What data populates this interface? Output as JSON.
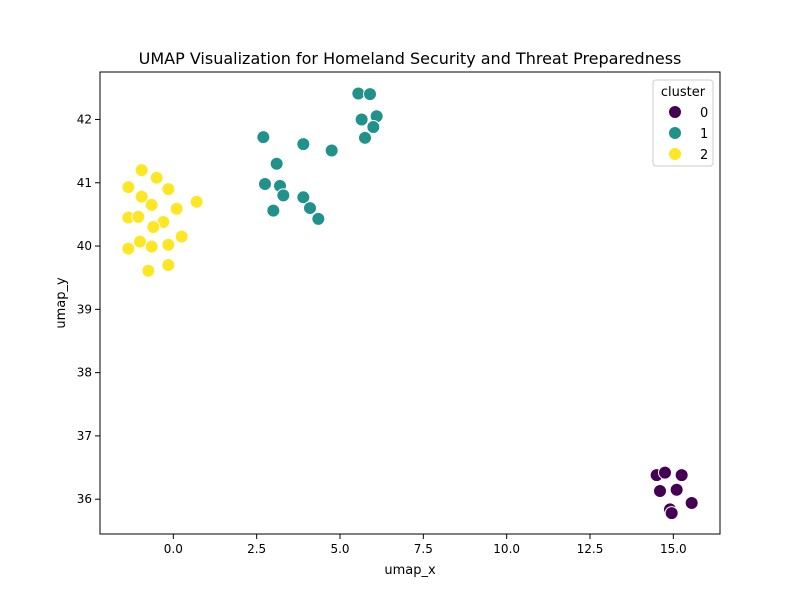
{
  "chart_data": {
    "type": "scatter",
    "title": "UMAP Visualization for Homeland Security and Threat Preparedness",
    "xlabel": "umap_x",
    "ylabel": "umap_y",
    "xlim": [
      -2.2,
      16.4
    ],
    "ylim": [
      35.45,
      42.75
    ],
    "x_ticks": [
      0.0,
      2.5,
      5.0,
      7.5,
      10.0,
      12.5,
      15.0
    ],
    "x_tick_labels": [
      "0.0",
      "2.5",
      "5.0",
      "7.5",
      "10.0",
      "12.5",
      "15.0"
    ],
    "y_ticks": [
      36,
      37,
      38,
      39,
      40,
      41,
      42
    ],
    "y_tick_labels": [
      "36",
      "37",
      "38",
      "39",
      "40",
      "41",
      "42"
    ],
    "grid": false,
    "legend": {
      "title": "cluster",
      "placement": "top-right"
    },
    "series": [
      {
        "name": "0",
        "color": "#440154",
        "points": [
          [
            14.5,
            36.38
          ],
          [
            14.75,
            36.42
          ],
          [
            15.25,
            36.38
          ],
          [
            14.6,
            36.13
          ],
          [
            15.1,
            36.15
          ],
          [
            15.55,
            35.94
          ],
          [
            14.9,
            35.84
          ],
          [
            14.95,
            35.78
          ]
        ]
      },
      {
        "name": "1",
        "color": "#21918c",
        "points": [
          [
            5.55,
            42.41
          ],
          [
            5.9,
            42.4
          ],
          [
            5.65,
            42.0
          ],
          [
            6.1,
            42.05
          ],
          [
            6.0,
            41.88
          ],
          [
            5.75,
            41.71
          ],
          [
            2.7,
            41.72
          ],
          [
            3.9,
            41.61
          ],
          [
            4.75,
            41.51
          ],
          [
            3.1,
            41.3
          ],
          [
            2.75,
            40.98
          ],
          [
            3.2,
            40.95
          ],
          [
            3.3,
            40.8
          ],
          [
            3.9,
            40.77
          ],
          [
            4.1,
            40.6
          ],
          [
            3.0,
            40.56
          ],
          [
            4.35,
            40.43
          ]
        ]
      },
      {
        "name": "2",
        "color": "#fde725",
        "points": [
          [
            -0.95,
            41.2
          ],
          [
            -0.5,
            41.08
          ],
          [
            -1.35,
            40.93
          ],
          [
            -0.15,
            40.9
          ],
          [
            -0.95,
            40.78
          ],
          [
            0.7,
            40.7
          ],
          [
            -0.65,
            40.65
          ],
          [
            0.1,
            40.59
          ],
          [
            -1.35,
            40.45
          ],
          [
            -1.05,
            40.46
          ],
          [
            -0.3,
            40.38
          ],
          [
            -0.6,
            40.3
          ],
          [
            0.25,
            40.15
          ],
          [
            -1.0,
            40.07
          ],
          [
            -0.15,
            40.02
          ],
          [
            -0.65,
            39.99
          ],
          [
            -1.35,
            39.96
          ],
          [
            -0.15,
            39.7
          ],
          [
            -0.75,
            39.61
          ]
        ]
      }
    ]
  }
}
